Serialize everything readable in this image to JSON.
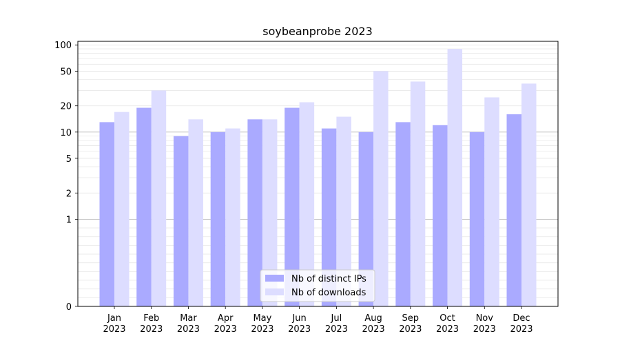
{
  "chart_data": {
    "type": "bar",
    "title": "soybeanprobe 2023",
    "xlabel": "",
    "ylabel": "",
    "y_scale": "symlog",
    "ylim": [
      0,
      110
    ],
    "yticks": [
      0,
      1,
      2,
      5,
      10,
      20,
      50,
      100
    ],
    "categories": [
      "Jan\n2023",
      "Feb\n2023",
      "Mar\n2023",
      "Apr\n2023",
      "May\n2023",
      "Jun\n2023",
      "Jul\n2023",
      "Aug\n2023",
      "Sep\n2023",
      "Oct\n2023",
      "Nov\n2023",
      "Dec\n2023"
    ],
    "series": [
      {
        "name": "Nb of distinct IPs",
        "color": "#aaaaff",
        "values": [
          13,
          19,
          9,
          10,
          14,
          19,
          11,
          10,
          13,
          12,
          10,
          16
        ]
      },
      {
        "name": "Nb of downloads",
        "color": "#ddddff",
        "values": [
          17,
          30,
          14,
          11,
          14,
          22,
          15,
          50,
          38,
          90,
          25,
          36
        ]
      }
    ],
    "grid": true,
    "legend_position": "lower-center"
  }
}
